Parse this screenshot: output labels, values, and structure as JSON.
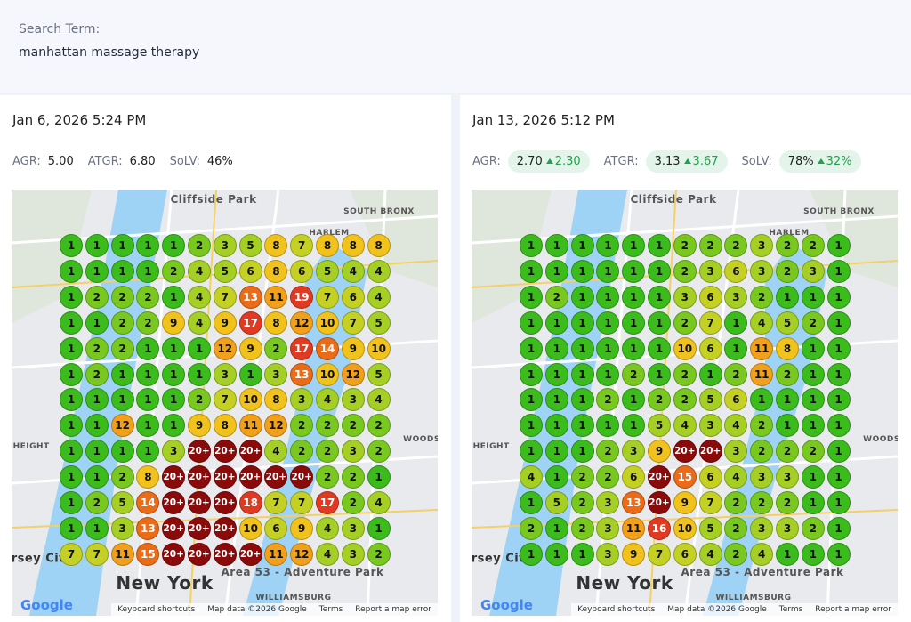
{
  "search": {
    "label": "Search Term:",
    "term": "manhattan massage therapy"
  },
  "panels": [
    {
      "date": "Jan 6, 2026 5:24 PM",
      "metrics": [
        {
          "label": "AGR:",
          "value": "5.00"
        },
        {
          "label": "ATGR:",
          "value": "6.80"
        },
        {
          "label": "SoLV:",
          "value": "46%"
        }
      ],
      "grid": [
        [
          1,
          1,
          1,
          1,
          1,
          2,
          3,
          5,
          8,
          7,
          8,
          8,
          8
        ],
        [
          1,
          1,
          1,
          1,
          2,
          4,
          5,
          6,
          8,
          6,
          5,
          4,
          4
        ],
        [
          1,
          2,
          2,
          2,
          1,
          4,
          7,
          13,
          11,
          19,
          7,
          6,
          4
        ],
        [
          1,
          1,
          2,
          2,
          9,
          4,
          9,
          17,
          8,
          12,
          10,
          7,
          5
        ],
        [
          1,
          2,
          2,
          1,
          1,
          1,
          12,
          9,
          2,
          17,
          14,
          9,
          10
        ],
        [
          1,
          2,
          1,
          1,
          1,
          1,
          3,
          1,
          3,
          13,
          10,
          12,
          5
        ],
        [
          1,
          1,
          1,
          1,
          1,
          2,
          7,
          10,
          8,
          3,
          4,
          3,
          4
        ],
        [
          1,
          1,
          12,
          1,
          1,
          9,
          8,
          11,
          12,
          2,
          2,
          2,
          2
        ],
        [
          1,
          1,
          1,
          1,
          3,
          "20+",
          "20+",
          "20+",
          4,
          2,
          2,
          3,
          2
        ],
        [
          1,
          1,
          2,
          8,
          "20+",
          "20+",
          "20+",
          "20+",
          "20+",
          "20+",
          2,
          2,
          1
        ],
        [
          1,
          2,
          5,
          14,
          "20+",
          "20+",
          "20+",
          18,
          7,
          7,
          17,
          2,
          4
        ],
        [
          1,
          1,
          3,
          13,
          "20+",
          "20+",
          "20+",
          10,
          6,
          9,
          4,
          3,
          1
        ],
        [
          7,
          7,
          11,
          15,
          "20+",
          "20+",
          "20+",
          "20+",
          11,
          12,
          4,
          3,
          2
        ]
      ],
      "map_labels": [
        "Cliffside Park",
        "SOUTH BRONX",
        "HARLEM",
        "New York",
        "WOODS",
        "E HEIGHT",
        "Jersey City",
        "Area 53 - Adventure Park",
        "WILLIAMSBURG"
      ],
      "map_footer": [
        "Keyboard shortcuts",
        "Map data ©2026 Google",
        "Terms",
        "Report a map error"
      ],
      "map_logo": "Google"
    },
    {
      "date": "Jan 13, 2026 5:12 PM",
      "metrics": [
        {
          "label": "AGR:",
          "value": "2.70",
          "change": "2.30"
        },
        {
          "label": "ATGR:",
          "value": "3.13",
          "change": "3.67"
        },
        {
          "label": "SoLV:",
          "value": "78%",
          "change": "32%"
        }
      ],
      "grid": [
        [
          1,
          1,
          1,
          1,
          1,
          1,
          2,
          2,
          2,
          3,
          2,
          2,
          1
        ],
        [
          1,
          1,
          1,
          1,
          1,
          1,
          2,
          3,
          6,
          3,
          2,
          3,
          1
        ],
        [
          1,
          2,
          1,
          1,
          1,
          1,
          3,
          6,
          3,
          2,
          1,
          1,
          1
        ],
        [
          1,
          1,
          1,
          1,
          1,
          1,
          2,
          7,
          1,
          4,
          5,
          2,
          1
        ],
        [
          1,
          1,
          1,
          1,
          1,
          1,
          10,
          6,
          1,
          11,
          8,
          1,
          1
        ],
        [
          1,
          1,
          1,
          1,
          2,
          1,
          2,
          1,
          2,
          11,
          2,
          1,
          1
        ],
        [
          1,
          1,
          1,
          2,
          1,
          2,
          2,
          5,
          6,
          1,
          1,
          1,
          1
        ],
        [
          1,
          1,
          1,
          1,
          1,
          5,
          4,
          3,
          4,
          2,
          1,
          1,
          1
        ],
        [
          1,
          1,
          1,
          2,
          3,
          9,
          "20+",
          "20+",
          3,
          2,
          2,
          2,
          1
        ],
        [
          4,
          1,
          2,
          2,
          6,
          "20+",
          15,
          6,
          4,
          3,
          3,
          1,
          1
        ],
        [
          1,
          5,
          2,
          3,
          13,
          "20+",
          9,
          7,
          2,
          2,
          2,
          1,
          1
        ],
        [
          2,
          1,
          2,
          3,
          11,
          16,
          10,
          5,
          2,
          3,
          3,
          2,
          1
        ],
        [
          1,
          1,
          1,
          3,
          9,
          7,
          6,
          4,
          2,
          4,
          1,
          1,
          1
        ]
      ],
      "map_labels": [
        "Cliffside Park",
        "SOUTH BRONX",
        "HARLEM",
        "New York",
        "WOODS",
        "E HEIGHT",
        "Jersey City",
        "Area 53 - Adventure Park",
        "WILLIAMSBURG"
      ],
      "map_footer": [
        "Keyboard shortcuts",
        "Map data ©2026 Google",
        "Terms",
        "Report a map error"
      ],
      "map_logo": "Google"
    }
  ]
}
